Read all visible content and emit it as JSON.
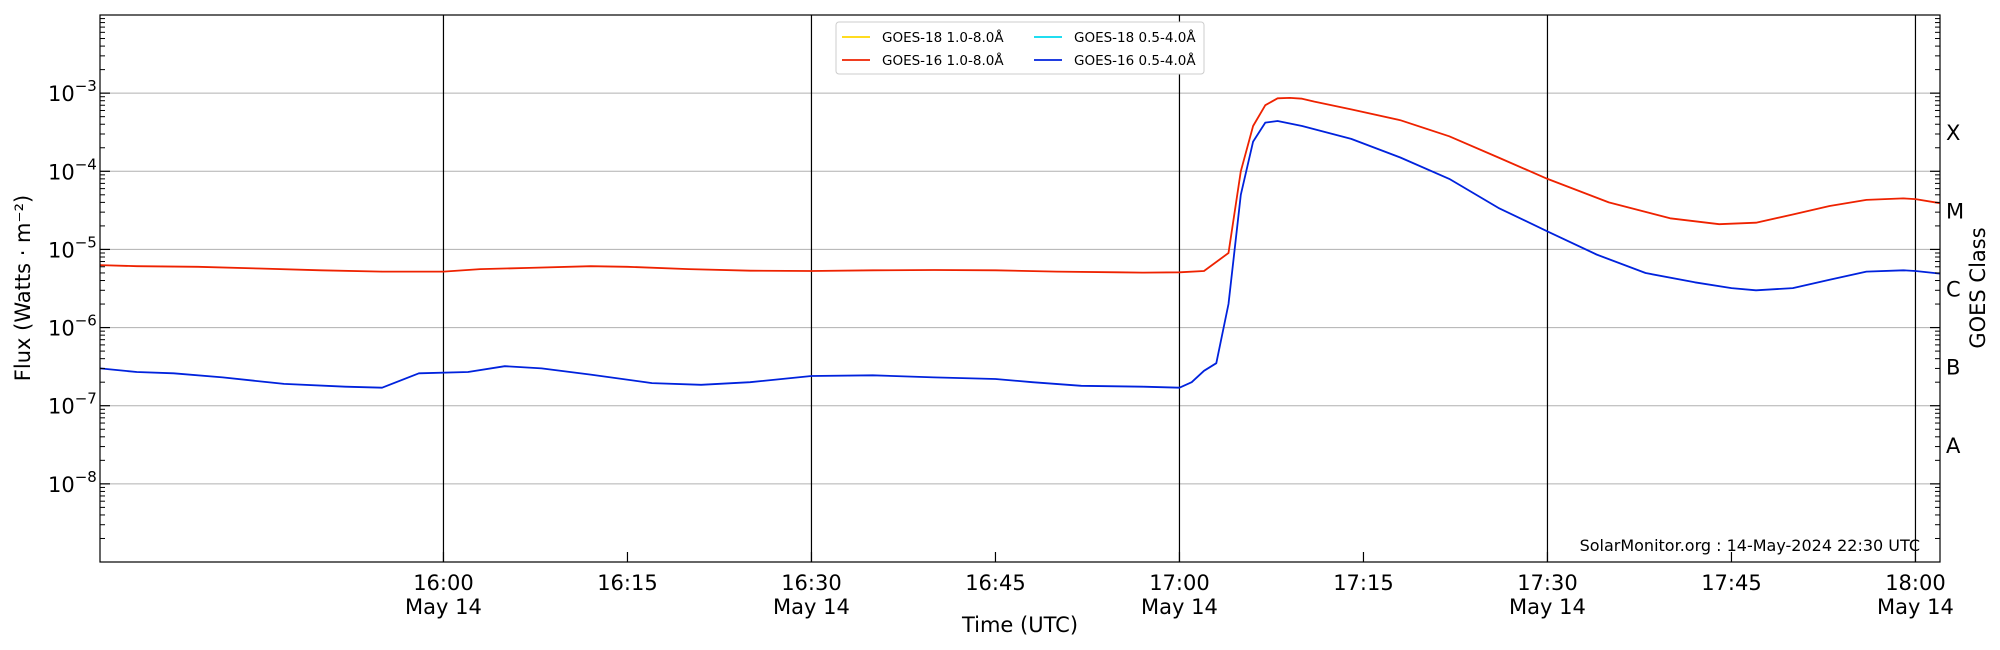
{
  "chart_data": {
    "type": "line",
    "xlabel": "Time (UTC)",
    "ylabel": "Flux (Watts · m⁻²)",
    "right_axis_label": "GOES Class",
    "yscale": "log",
    "ylim": [
      1e-09,
      0.01
    ],
    "xlim": [
      "15:32",
      "18:02"
    ],
    "grid": "horizontal at decades, vertical at half-hours",
    "legend_placement": "top-center",
    "x_ticks": [
      {
        "time": "16:00",
        "label": "16:00",
        "date": "May 14"
      },
      {
        "time": "16:15",
        "label": "16:15",
        "date": ""
      },
      {
        "time": "16:30",
        "label": "16:30",
        "date": "May 14"
      },
      {
        "time": "16:45",
        "label": "16:45",
        "date": ""
      },
      {
        "time": "17:00",
        "label": "17:00",
        "date": "May 14"
      },
      {
        "time": "17:15",
        "label": "17:15",
        "date": ""
      },
      {
        "time": "17:30",
        "label": "17:30",
        "date": "May 14"
      },
      {
        "time": "17:45",
        "label": "17:45",
        "date": ""
      },
      {
        "time": "18:00",
        "label": "18:00",
        "date": "May 14"
      }
    ],
    "y_ticks": [
      {
        "exp": -3,
        "base": "10",
        "sup": "−3"
      },
      {
        "exp": -4,
        "base": "10",
        "sup": "−4"
      },
      {
        "exp": -5,
        "base": "10",
        "sup": "−5"
      },
      {
        "exp": -6,
        "base": "10",
        "sup": "−6"
      },
      {
        "exp": -7,
        "base": "10",
        "sup": "−7"
      },
      {
        "exp": -8,
        "base": "10",
        "sup": "−8"
      }
    ],
    "goes_classes": [
      {
        "label": "X",
        "exp": -3.5
      },
      {
        "label": "M",
        "exp": -4.5
      },
      {
        "label": "C",
        "exp": -5.5
      },
      {
        "label": "B",
        "exp": -6.5
      },
      {
        "label": "A",
        "exp": -7.5
      }
    ],
    "series": [
      {
        "name": "GOES-18 1.0-8.0Å",
        "color": "#ffd700",
        "points": []
      },
      {
        "name": "GOES-16 1.0-8.0Å",
        "color": "#ee2200",
        "points": [
          [
            "15:32",
            6.3e-06
          ],
          [
            "15:35",
            6.1e-06
          ],
          [
            "15:40",
            6e-06
          ],
          [
            "15:45",
            5.7e-06
          ],
          [
            "15:50",
            5.4e-06
          ],
          [
            "15:55",
            5.2e-06
          ],
          [
            "16:00",
            5.2e-06
          ],
          [
            "16:03",
            5.6e-06
          ],
          [
            "16:07",
            5.8e-06
          ],
          [
            "16:12",
            6.1e-06
          ],
          [
            "16:15",
            6e-06
          ],
          [
            "16:20",
            5.6e-06
          ],
          [
            "16:25",
            5.35e-06
          ],
          [
            "16:30",
            5.3e-06
          ],
          [
            "16:35",
            5.4e-06
          ],
          [
            "16:40",
            5.45e-06
          ],
          [
            "16:45",
            5.4e-06
          ],
          [
            "16:50",
            5.2e-06
          ],
          [
            "16:55",
            5.1e-06
          ],
          [
            "16:57",
            5.05e-06
          ],
          [
            "17:00",
            5.1e-06
          ],
          [
            "17:02",
            5.3e-06
          ],
          [
            "17:04",
            9e-06
          ],
          [
            "17:05",
            0.0001
          ],
          [
            "17:06",
            0.00038
          ],
          [
            "17:07",
            0.0007
          ],
          [
            "17:08",
            0.00086
          ],
          [
            "17:09",
            0.00087
          ],
          [
            "17:10",
            0.00085
          ],
          [
            "17:11",
            0.00078
          ],
          [
            "17:14",
            0.00062
          ],
          [
            "17:18",
            0.00045
          ],
          [
            "17:22",
            0.00028
          ],
          [
            "17:26",
            0.00015
          ],
          [
            "17:30",
            8e-05
          ],
          [
            "17:35",
            4e-05
          ],
          [
            "17:40",
            2.5e-05
          ],
          [
            "17:44",
            2.1e-05
          ],
          [
            "17:47",
            2.2e-05
          ],
          [
            "17:50",
            2.8e-05
          ],
          [
            "17:53",
            3.6e-05
          ],
          [
            "17:56",
            4.3e-05
          ],
          [
            "17:59",
            4.5e-05
          ],
          [
            "18:00",
            4.4e-05
          ],
          [
            "18:02",
            3.9e-05
          ]
        ]
      },
      {
        "name": "GOES-18 0.5-4.0Å",
        "color": "#00d8ee",
        "points": []
      },
      {
        "name": "GOES-16 0.5-4.0Å",
        "color": "#0022dd",
        "points": [
          [
            "15:32",
            3e-07
          ],
          [
            "15:35",
            2.7e-07
          ],
          [
            "15:38",
            2.6e-07
          ],
          [
            "15:42",
            2.3e-07
          ],
          [
            "15:47",
            1.9e-07
          ],
          [
            "15:52",
            1.75e-07
          ],
          [
            "15:55",
            1.7e-07
          ],
          [
            "15:58",
            2.6e-07
          ],
          [
            "16:02",
            2.7e-07
          ],
          [
            "16:05",
            3.2e-07
          ],
          [
            "16:08",
            3e-07
          ],
          [
            "16:12",
            2.5e-07
          ],
          [
            "16:17",
            1.95e-07
          ],
          [
            "16:21",
            1.85e-07
          ],
          [
            "16:25",
            2e-07
          ],
          [
            "16:30",
            2.4e-07
          ],
          [
            "16:35",
            2.45e-07
          ],
          [
            "16:40",
            2.3e-07
          ],
          [
            "16:45",
            2.2e-07
          ],
          [
            "16:48",
            2e-07
          ],
          [
            "16:52",
            1.8e-07
          ],
          [
            "16:57",
            1.75e-07
          ],
          [
            "17:00",
            1.7e-07
          ],
          [
            "17:01",
            2e-07
          ],
          [
            "17:02",
            2.8e-07
          ],
          [
            "17:03",
            3.5e-07
          ],
          [
            "17:04",
            2e-06
          ],
          [
            "17:05",
            5e-05
          ],
          [
            "17:06",
            0.00024
          ],
          [
            "17:07",
            0.00042
          ],
          [
            "17:08",
            0.00044
          ],
          [
            "17:10",
            0.00038
          ],
          [
            "17:14",
            0.00026
          ],
          [
            "17:18",
            0.00015
          ],
          [
            "17:22",
            8e-05
          ],
          [
            "17:26",
            3.4e-05
          ],
          [
            "17:30",
            1.7e-05
          ],
          [
            "17:34",
            8.6e-06
          ],
          [
            "17:38",
            5e-06
          ],
          [
            "17:42",
            3.8e-06
          ],
          [
            "17:45",
            3.2e-06
          ],
          [
            "17:47",
            3e-06
          ],
          [
            "17:50",
            3.2e-06
          ],
          [
            "17:53",
            4.1e-06
          ],
          [
            "17:56",
            5.2e-06
          ],
          [
            "17:59",
            5.4e-06
          ],
          [
            "18:00",
            5.3e-06
          ],
          [
            "18:02",
            4.9e-06
          ]
        ]
      }
    ]
  },
  "credit": "SolarMonitor.org : 14-May-2024 22:30 UTC"
}
